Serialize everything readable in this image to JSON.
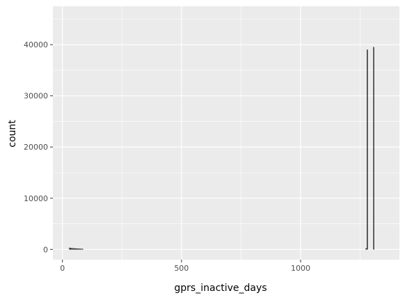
{
  "chart_data": {
    "type": "histogram",
    "title": "",
    "xlabel": "gprs_inactive_days",
    "ylabel": "count",
    "xlim": [
      -40,
      1415
    ],
    "ylim": [
      -2000,
      47500
    ],
    "x_ticks": [
      0,
      500,
      1000
    ],
    "y_ticks": [
      0,
      10000,
      20000,
      30000,
      40000
    ],
    "x_minor_ticks": [
      250,
      750,
      1250
    ],
    "y_minor_ticks": [
      5000,
      15000,
      25000,
      35000,
      45000
    ],
    "bin_width": 2.5,
    "bins": [
      {
        "x": 30,
        "count": 300
      },
      {
        "x": 35,
        "count": 250
      },
      {
        "x": 40,
        "count": 200
      },
      {
        "x": 45,
        "count": 220
      },
      {
        "x": 50,
        "count": 180
      },
      {
        "x": 55,
        "count": 160
      },
      {
        "x": 60,
        "count": 150
      },
      {
        "x": 65,
        "count": 140
      },
      {
        "x": 70,
        "count": 120
      },
      {
        "x": 75,
        "count": 100
      },
      {
        "x": 80,
        "count": 90
      },
      {
        "x": 85,
        "count": 80
      },
      {
        "x": 1275,
        "count": 200
      },
      {
        "x": 1280,
        "count": 39000
      },
      {
        "x": 1307,
        "count": 39500
      }
    ],
    "grid": true,
    "panel_color": "#ebebeb",
    "bar_outline_color": "#000000"
  }
}
